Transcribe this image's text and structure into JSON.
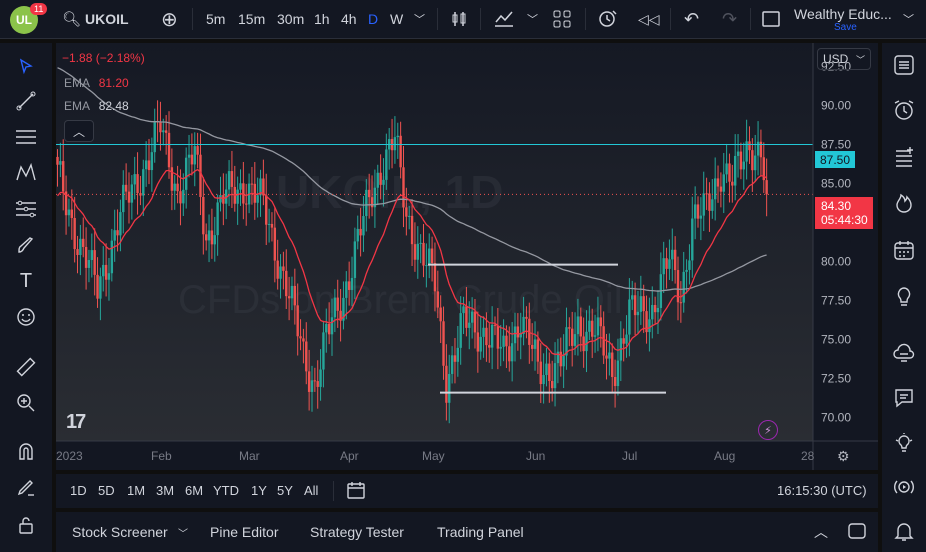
{
  "header": {
    "logo_text": "11",
    "notification_count": "11",
    "symbol": "UKOIL",
    "intervals": [
      "5m",
      "15m",
      "30m",
      "1h",
      "4h",
      "D",
      "W"
    ],
    "active_interval": "D",
    "layout_name": "Wealthy Educ...",
    "save_label": "Save"
  },
  "legend": {
    "change": "−1.88 (−2.18%)",
    "ema1_label": "EMA",
    "ema1_value": "81.20",
    "ema2_label": "EMA",
    "ema2_value": "82.48"
  },
  "currency": "USD",
  "price_axis": {
    "ticks": [
      "92.50",
      "90.00",
      "87.50",
      "85.00",
      "82.50",
      "80.00",
      "77.50",
      "75.00",
      "72.50",
      "70.00"
    ],
    "line_label": "87.50",
    "current_price": "84.30",
    "countdown": "05:44:30"
  },
  "time_axis": {
    "ticks": [
      "2023",
      "Feb",
      "Mar",
      "Apr",
      "May",
      "Jun",
      "Jul",
      "Aug",
      "28"
    ]
  },
  "watermark": {
    "line1": "UKOIL, 1D",
    "line2": "CFDs on Brent Crude Oil"
  },
  "timeframes": {
    "ranges": [
      "1D",
      "5D",
      "1M",
      "3M",
      "6M",
      "YTD",
      "1Y",
      "5Y",
      "All"
    ],
    "clock": "16:15:30 (UTC)"
  },
  "bottom_tabs": [
    "Stock Screener",
    "Pine Editor",
    "Strategy Tester",
    "Trading Panel"
  ],
  "colors": {
    "up": "#26a69a",
    "down": "#ef5350",
    "ema_fast": "#f23645",
    "ema_slow": "#9598a1",
    "hline": "#22c7d6",
    "support": "#d1d4dc"
  },
  "chart_data": {
    "type": "candlestick",
    "title": "UKOIL, 1D",
    "ylim": [
      68.5,
      94
    ],
    "horizontal_lines": [
      87.5
    ],
    "range_lines": [
      [
        79.8,
        71.6
      ]
    ]
  }
}
